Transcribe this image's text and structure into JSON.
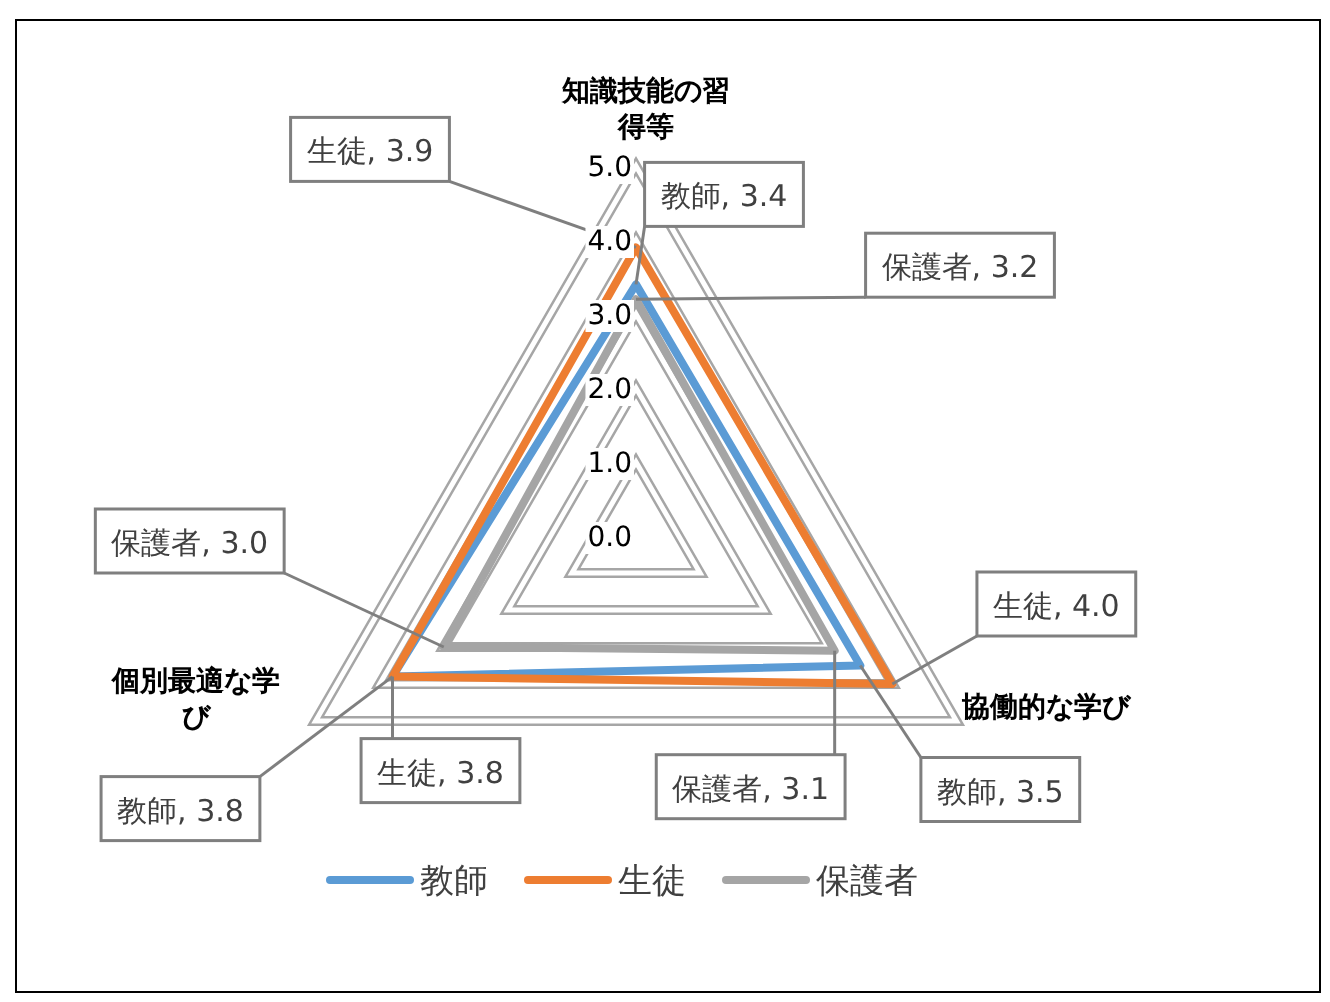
{
  "chart_data": {
    "type": "radar",
    "categories": [
      "知識技能の習得等",
      "協働的な学び",
      "個別最適な学び"
    ],
    "ylim": [
      0,
      5
    ],
    "yticks": [
      {
        "value": 0,
        "label": "0.0"
      },
      {
        "value": 1,
        "label": "1.0"
      },
      {
        "value": 2,
        "label": "2.0"
      },
      {
        "value": 3,
        "label": "3.0"
      },
      {
        "value": 4,
        "label": "4.0"
      },
      {
        "value": 5,
        "label": "5.0"
      }
    ],
    "grid": true,
    "legend": "bottom",
    "series": [
      {
        "name": "教師",
        "color": "#5b9bd5",
        "values": [
          3.4,
          3.5,
          3.8
        ],
        "value_labels": [
          "教師, 3.4",
          "教師, 3.5",
          "教師, 3.8"
        ]
      },
      {
        "name": "生徒",
        "color": "#ed7d31",
        "values": [
          3.9,
          4.0,
          3.8
        ],
        "value_labels": [
          "生徒, 3.9",
          "生徒, 4.0",
          "生徒, 3.8"
        ]
      },
      {
        "name": "保護者",
        "color": "#a5a5a5",
        "values": [
          3.2,
          3.1,
          3.0
        ],
        "value_labels": [
          "保護者, 3.2",
          "保護者, 3.1",
          "保護者, 3.0"
        ]
      }
    ]
  }
}
